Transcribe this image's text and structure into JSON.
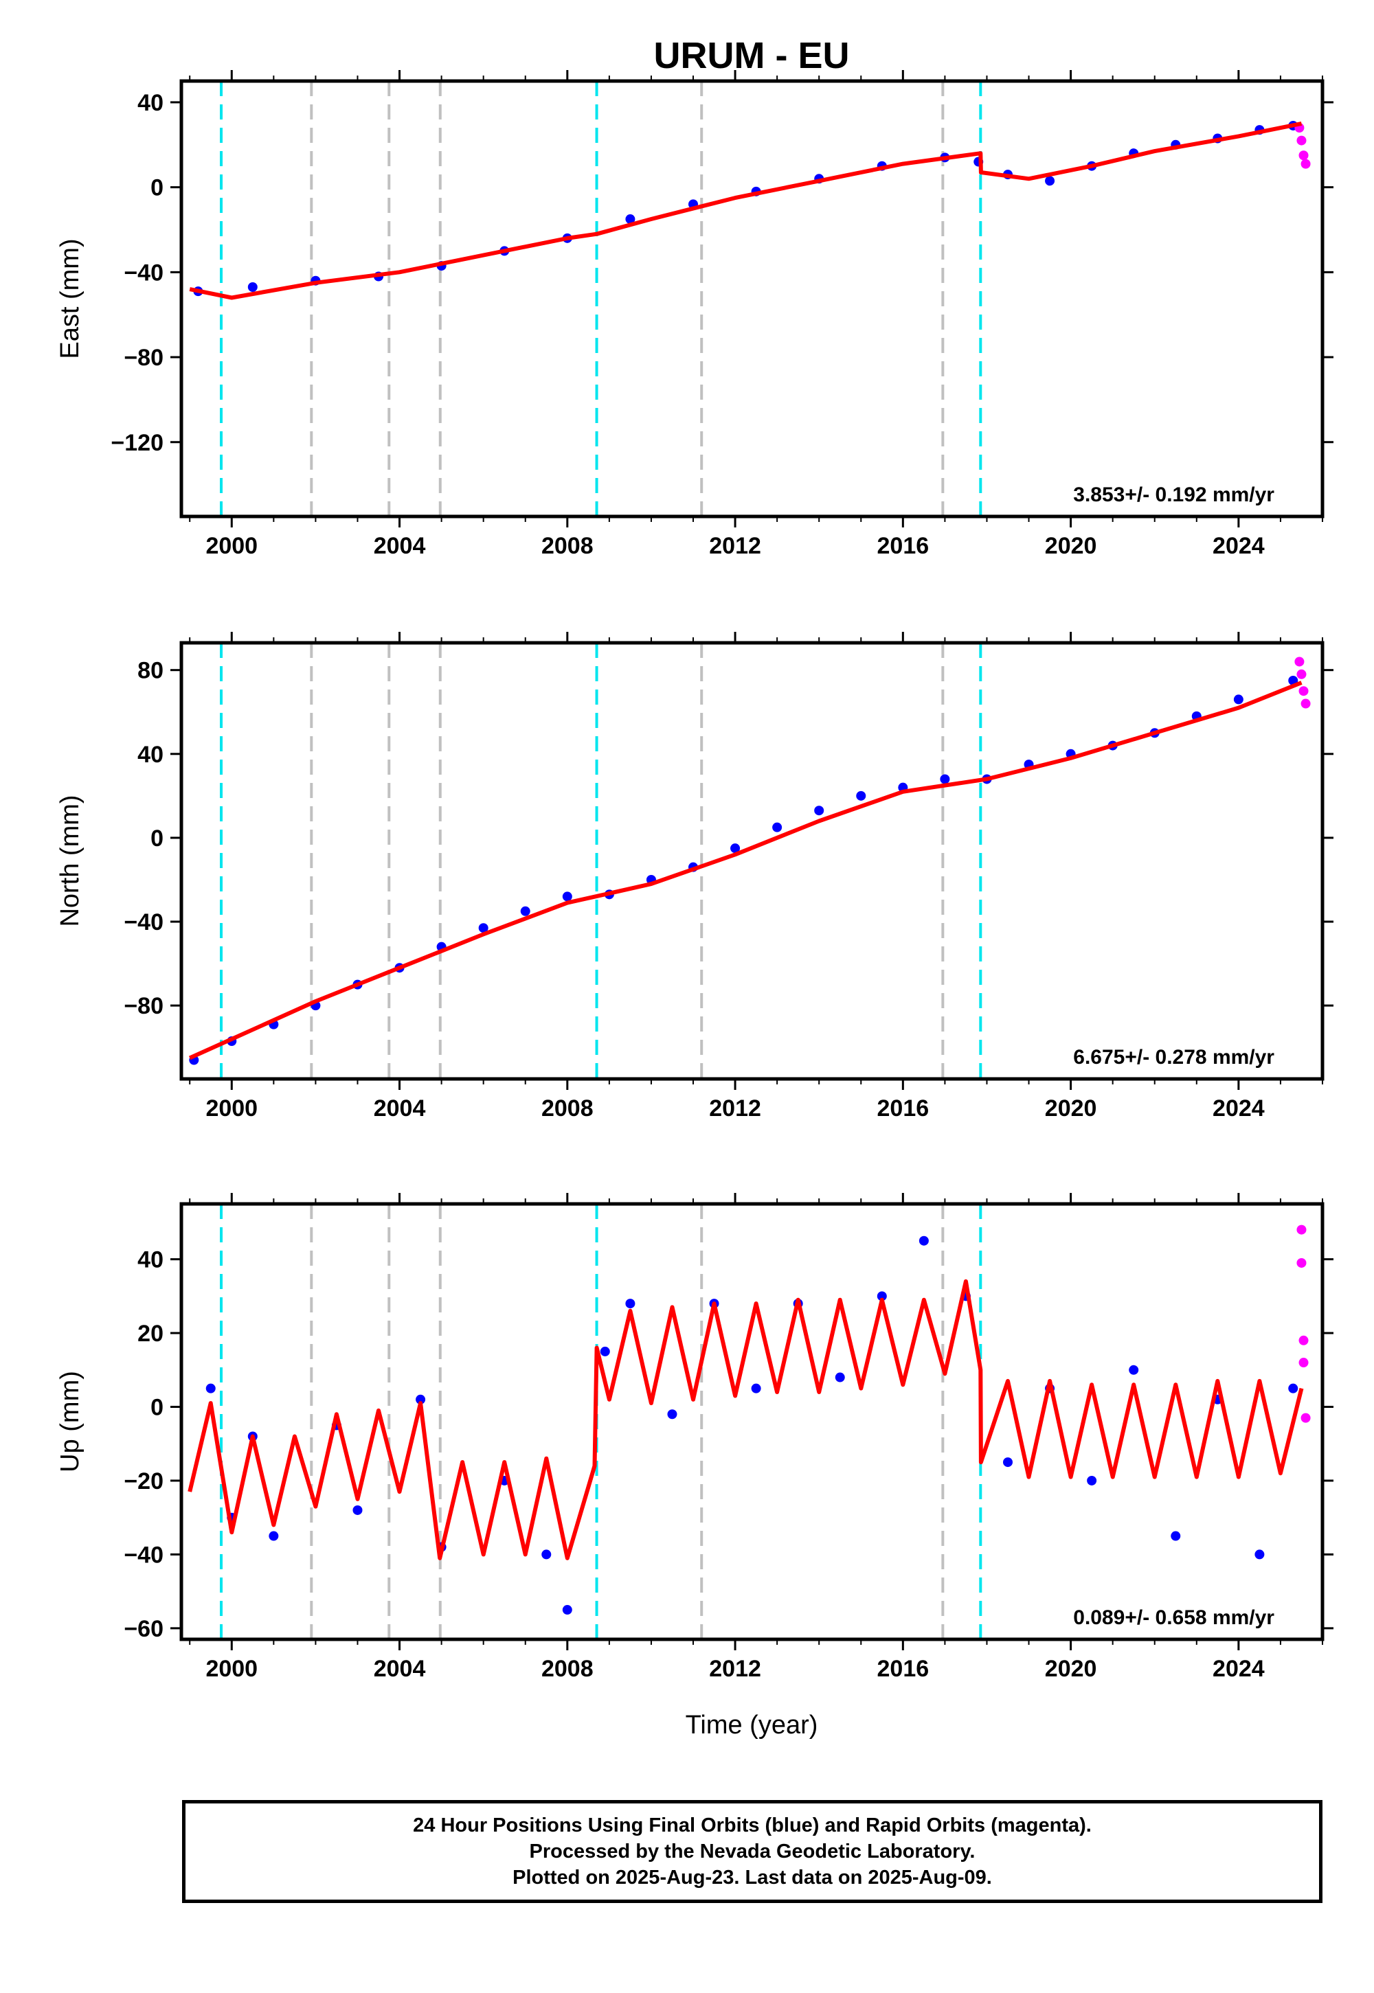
{
  "title": "URUM - EU",
  "xlabel": "Time (year)",
  "footer": {
    "line1": "24 Hour Positions Using Final Orbits (blue) and Rapid Orbits (magenta).",
    "line2": "Processed by the Nevada Geodetic Laboratory.",
    "line3": "Plotted on 2025-Aug-23. Last data on 2025-Aug-09."
  },
  "colors": {
    "final_orbits": "#0000ff",
    "rapid_orbits": "#ff00ff",
    "model_fit": "#ff0000",
    "equipment_change": "#00e5ee",
    "earthquake": "#c0c0c0"
  },
  "chart_data": [
    {
      "type": "scatter",
      "ylabel": "East (mm)",
      "xlim": [
        1998.8,
        2026.0
      ],
      "ylim": [
        -155,
        50
      ],
      "xticks": [
        2000,
        2004,
        2008,
        2012,
        2016,
        2020,
        2024
      ],
      "yticks": [
        -120,
        -80,
        -40,
        0,
        40
      ],
      "rate": "3.853+/- 0.192 mm/yr",
      "cyan_lines": [
        1999.75,
        2008.7,
        2017.85
      ],
      "gray_lines": [
        2001.9,
        2003.75,
        2004.97,
        2011.2,
        2016.95
      ],
      "series": [
        {
          "legend": "final",
          "color": "#0000ff",
          "x": [
            1999.2,
            2000.5,
            2002.0,
            2003.5,
            2005.0,
            2006.5,
            2008.0,
            2009.5,
            2011.0,
            2012.5,
            2014.0,
            2015.5,
            2017.0,
            2017.8,
            2018.5,
            2019.5,
            2020.5,
            2021.5,
            2022.5,
            2023.5,
            2024.5,
            2025.3
          ],
          "y": [
            -49,
            -47,
            -44,
            -42,
            -37,
            -30,
            -24,
            -15,
            -8,
            -2,
            4,
            10,
            14,
            12,
            6,
            3,
            10,
            16,
            20,
            23,
            27,
            29
          ]
        },
        {
          "legend": "rapid",
          "color": "#ff00ff",
          "x": [
            2025.45,
            2025.5,
            2025.55,
            2025.6
          ],
          "y": [
            28,
            22,
            15,
            11
          ]
        },
        {
          "legend": "fit",
          "color": "#ff0000",
          "x": [
            1999.0,
            2000.0,
            2002.0,
            2004.0,
            2006.0,
            2008.0,
            2008.7,
            2010.0,
            2012.0,
            2014.0,
            2016.0,
            2017.85,
            2017.86,
            2019.0,
            2020.5,
            2022.0,
            2024.0,
            2025.5
          ],
          "y": [
            -48,
            -52,
            -45,
            -40,
            -32,
            -24,
            -22,
            -15,
            -5,
            3,
            11,
            16,
            7,
            4,
            10,
            17,
            24,
            30
          ]
        }
      ]
    },
    {
      "type": "scatter",
      "ylabel": "North (mm)",
      "xlim": [
        1998.8,
        2026.0
      ],
      "ylim": [
        -115,
        93
      ],
      "xticks": [
        2000,
        2004,
        2008,
        2012,
        2016,
        2020,
        2024
      ],
      "yticks": [
        -80,
        -40,
        0,
        40,
        80
      ],
      "rate": "6.675+/- 0.278 mm/yr",
      "cyan_lines": [
        1999.75,
        2008.7,
        2017.85
      ],
      "gray_lines": [
        2001.9,
        2003.75,
        2004.97,
        2011.2,
        2016.95
      ],
      "series": [
        {
          "legend": "final",
          "color": "#0000ff",
          "x": [
            1999.1,
            2000.0,
            2001.0,
            2002.0,
            2003.0,
            2004.0,
            2005.0,
            2006.0,
            2007.0,
            2008.0,
            2009.0,
            2010.0,
            2011.0,
            2012.0,
            2013.0,
            2014.0,
            2015.0,
            2016.0,
            2017.0,
            2018.0,
            2019.0,
            2020.0,
            2021.0,
            2022.0,
            2023.0,
            2024.0,
            2025.3
          ],
          "y": [
            -106,
            -97,
            -89,
            -80,
            -70,
            -62,
            -52,
            -43,
            -35,
            -28,
            -27,
            -20,
            -14,
            -5,
            5,
            13,
            20,
            24,
            28,
            28,
            35,
            40,
            44,
            50,
            58,
            66,
            75
          ]
        },
        {
          "legend": "rapid",
          "color": "#ff00ff",
          "x": [
            2025.45,
            2025.5,
            2025.55,
            2025.6
          ],
          "y": [
            84,
            78,
            70,
            64
          ]
        },
        {
          "legend": "fit",
          "color": "#ff0000",
          "x": [
            1999.0,
            2000.0,
            2002.0,
            2004.0,
            2006.0,
            2008.0,
            2010.0,
            2012.0,
            2014.0,
            2016.0,
            2018.0,
            2020.0,
            2022.0,
            2024.0,
            2025.5
          ],
          "y": [
            -105,
            -96,
            -78,
            -62,
            -46,
            -31,
            -22,
            -8,
            8,
            22,
            28,
            38,
            50,
            62,
            74
          ]
        }
      ]
    },
    {
      "type": "scatter",
      "ylabel": "Up (mm)",
      "xlim": [
        1998.8,
        2026.0
      ],
      "ylim": [
        -63,
        55
      ],
      "xticks": [
        2000,
        2004,
        2008,
        2012,
        2016,
        2020,
        2024
      ],
      "yticks": [
        -60,
        -40,
        -20,
        0,
        20,
        40
      ],
      "rate": "0.089+/- 0.658 mm/yr",
      "cyan_lines": [
        1999.75,
        2008.7,
        2017.85
      ],
      "gray_lines": [
        2001.9,
        2003.75,
        2004.97,
        2011.2,
        2016.95
      ],
      "series": [
        {
          "legend": "final",
          "color": "#0000ff",
          "x": [
            1999.5,
            2000.0,
            2000.5,
            2001.0,
            2002.5,
            2003.0,
            2004.5,
            2005.0,
            2006.5,
            2007.5,
            2008.0,
            2008.9,
            2009.5,
            2010.5,
            2011.5,
            2012.5,
            2013.5,
            2014.5,
            2015.5,
            2016.5,
            2017.5,
            2018.5,
            2019.5,
            2020.5,
            2021.5,
            2022.5,
            2023.5,
            2024.5,
            2025.3
          ],
          "y": [
            5,
            -30,
            -8,
            -35,
            -5,
            -28,
            2,
            -38,
            -20,
            -40,
            -55,
            15,
            28,
            -2,
            28,
            5,
            28,
            8,
            30,
            45,
            30,
            -15,
            5,
            -20,
            10,
            -35,
            2,
            -40,
            5
          ]
        },
        {
          "legend": "rapid",
          "color": "#ff00ff",
          "x": [
            2025.5,
            2025.5,
            2025.55,
            2025.55,
            2025.6
          ],
          "y": [
            48,
            39,
            18,
            12,
            -3
          ]
        },
        {
          "legend": "fit",
          "color": "#ff0000",
          "x": [
            1999.0,
            1999.5,
            2000.0,
            2000.5,
            2001.0,
            2001.5,
            2002.0,
            2002.5,
            2003.0,
            2003.5,
            2004.0,
            2004.5,
            2004.96,
            2005.5,
            2006.0,
            2006.5,
            2007.0,
            2007.5,
            2008.0,
            2008.65,
            2008.7,
            2009.0,
            2009.5,
            2010.0,
            2010.5,
            2011.0,
            2011.5,
            2012.0,
            2012.5,
            2013.0,
            2013.5,
            2014.0,
            2014.5,
            2015.0,
            2015.5,
            2016.0,
            2016.5,
            2017.0,
            2017.5,
            2017.85,
            2017.86,
            2018.5,
            2019.0,
            2019.5,
            2020.0,
            2020.5,
            2021.0,
            2021.5,
            2022.0,
            2022.5,
            2023.0,
            2023.5,
            2024.0,
            2024.5,
            2025.0,
            2025.5
          ],
          "y": [
            -23,
            1,
            -34,
            -8,
            -32,
            -8,
            -27,
            -2,
            -25,
            -1,
            -23,
            1,
            -41,
            -15,
            -40,
            -15,
            -40,
            -14,
            -41,
            -16,
            16,
            2,
            26,
            1,
            27,
            2,
            28,
            3,
            28,
            4,
            29,
            4,
            29,
            5,
            29,
            6,
            29,
            9,
            34,
            10,
            -15,
            7,
            -19,
            7,
            -19,
            6,
            -19,
            6,
            -19,
            6,
            -19,
            7,
            -19,
            7,
            -18,
            5
          ]
        }
      ]
    }
  ]
}
